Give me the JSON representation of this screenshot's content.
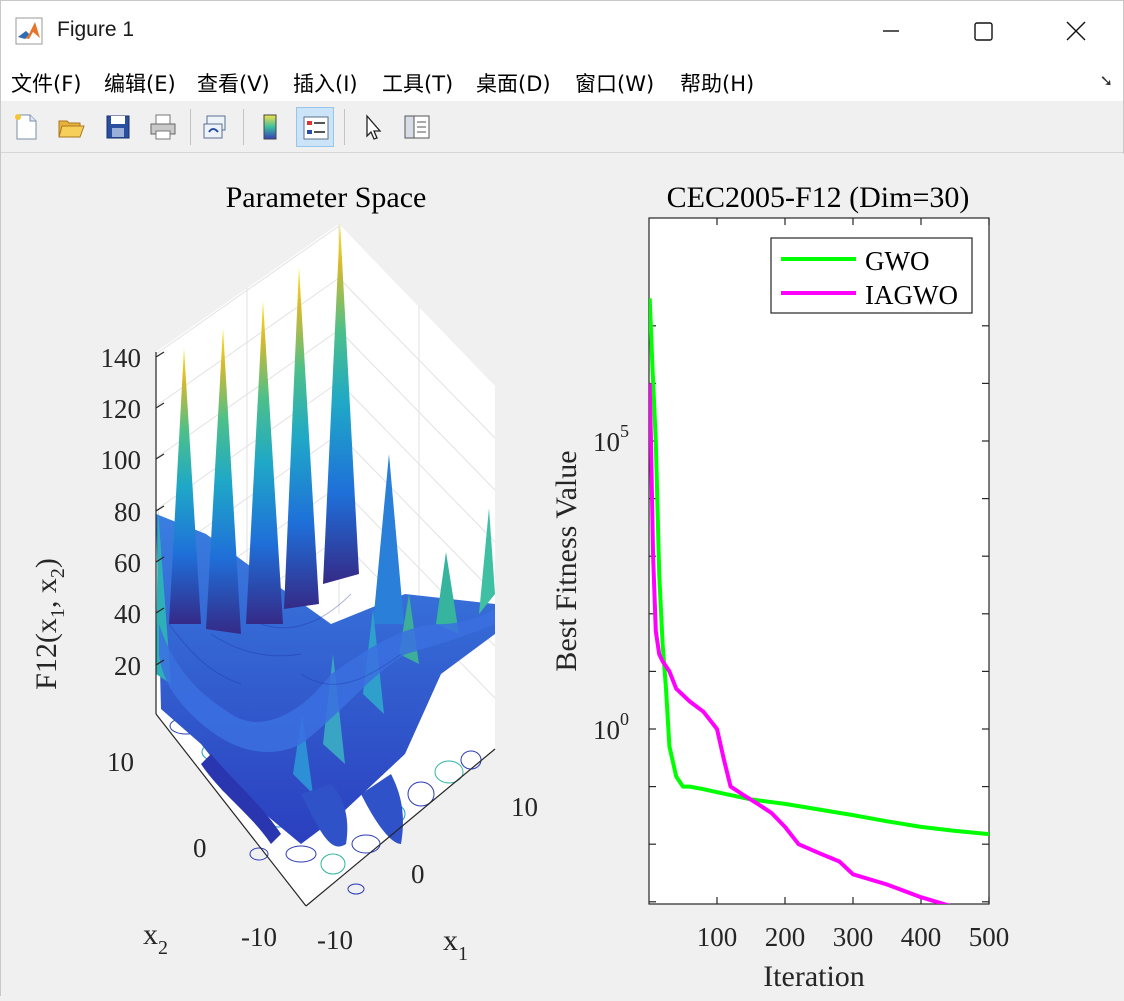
{
  "window": {
    "title": "Figure 1",
    "icon": "matlab-icon"
  },
  "menubar": {
    "items": [
      "文件(F)",
      "编辑(E)",
      "查看(V)",
      "插入(I)",
      "工具(T)",
      "桌面(D)",
      "窗口(W)",
      "帮助(H)"
    ],
    "mnemonics": [
      "F",
      "E",
      "V",
      "I",
      "T",
      "D",
      "W",
      "H"
    ]
  },
  "toolbar": {
    "tools": [
      "new-figure-icon",
      "open-file-icon",
      "save-icon",
      "print-icon",
      "link-plot-icon",
      "colorbar-icon",
      "legend-icon",
      "pointer-icon",
      "property-inspector-icon"
    ],
    "active": "legend-icon"
  },
  "surface_plot": {
    "title": "Parameter Space",
    "zlabel": "F12(x",
    "zlabel_parts": [
      "F12(x",
      "1",
      ", x",
      "2",
      ")"
    ],
    "xlabel": "x",
    "xlabel_sub": "1",
    "ylabel": "x",
    "ylabel_sub": "2",
    "z_ticks": [
      "20",
      "40",
      "60",
      "80",
      "100",
      "120",
      "140"
    ],
    "x_ticks": [
      "-10",
      "0",
      "10"
    ],
    "y_ticks": [
      "-10",
      "0",
      "10"
    ],
    "colormap": "parula"
  },
  "chart_data": {
    "type": "line",
    "title": "CEC2005-F12 (Dim=30)",
    "xlabel": "Iteration",
    "ylabel": "Best Fitness Value",
    "yscale": "log",
    "xlim": [
      0,
      500
    ],
    "ylim": [
      0.0003,
      30000000
    ],
    "x_ticks": [
      "100",
      "200",
      "300",
      "400",
      "500"
    ],
    "y_tick_base": "10",
    "y_tick_exps": [
      "0",
      "5"
    ],
    "legend": {
      "position": "top-right",
      "entries": [
        "GWO",
        "IAGWO"
      ]
    },
    "series": [
      {
        "name": "GWO",
        "color": "#00ff00",
        "x": [
          1,
          5,
          10,
          15,
          20,
          25,
          30,
          40,
          50,
          60,
          80,
          100,
          150,
          200,
          250,
          300,
          350,
          400,
          450,
          500
        ],
        "y": [
          30000000,
          2000000,
          100000,
          500,
          30,
          5,
          0.5,
          0.15,
          0.1,
          0.1,
          0.09,
          0.08,
          0.06,
          0.05,
          0.04,
          0.032,
          0.025,
          0.02,
          0.017,
          0.015
        ]
      },
      {
        "name": "IAGWO",
        "color": "#ff00ff",
        "x": [
          1,
          3,
          6,
          10,
          15,
          20,
          30,
          40,
          60,
          80,
          100,
          110,
          120,
          140,
          160,
          180,
          200,
          220,
          250,
          280,
          300,
          350,
          400,
          450,
          500
        ],
        "y": [
          1000000,
          100000,
          1000,
          50,
          20,
          15,
          10,
          5,
          3,
          2,
          1,
          0.3,
          0.1,
          0.07,
          0.05,
          0.035,
          0.02,
          0.01,
          0.007,
          0.005,
          0.003,
          0.002,
          0.0012,
          0.0008,
          0.0006
        ]
      }
    ]
  }
}
